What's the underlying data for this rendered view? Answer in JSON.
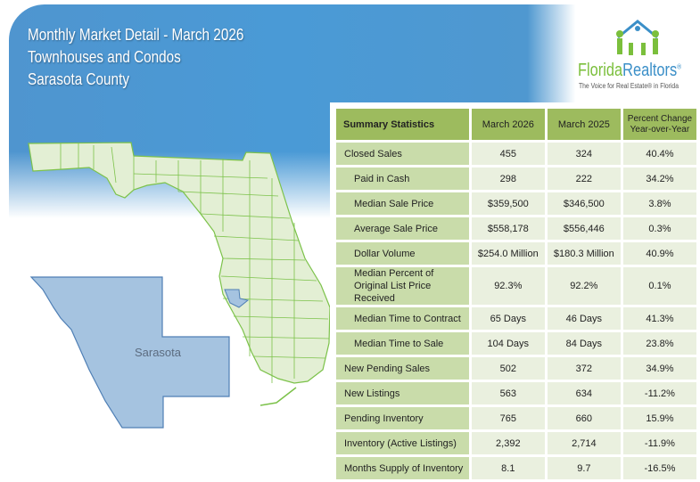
{
  "header": {
    "line1": "Monthly Market Detail - March 2026",
    "line2": "Townhouses and Condos",
    "line3": "Sarasota County"
  },
  "logo": {
    "brand_a": "Florida",
    "brand_b": "Realtors",
    "reg": "®",
    "tagline": "The Voice for Real Estate® in Florida"
  },
  "map": {
    "county_label": "Sarasota",
    "highlight_color": "#a5c3e0",
    "state_color": "#e3efd4",
    "border_color": "#7cc24a"
  },
  "table": {
    "headers": [
      "Summary Statistics",
      "March 2026",
      "March 2025",
      "Percent Change Year-over-Year"
    ],
    "rows": [
      {
        "label": "Closed Sales",
        "a": "455",
        "b": "324",
        "c": "40.4%"
      },
      {
        "label": "Paid in Cash",
        "a": "298",
        "b": "222",
        "c": "34.2%"
      },
      {
        "label": "Median Sale Price",
        "a": "$359,500",
        "b": "$346,500",
        "c": "3.8%"
      },
      {
        "label": "Average Sale Price",
        "a": "$558,178",
        "b": "$556,446",
        "c": "0.3%"
      },
      {
        "label": "Dollar Volume",
        "a": "$254.0 Million",
        "b": "$180.3 Million",
        "c": "40.9%"
      },
      {
        "label": "Median Percent of Original List Price Received",
        "a": "92.3%",
        "b": "92.2%",
        "c": "0.1%"
      },
      {
        "label": "Median Time to Contract",
        "a": "65 Days",
        "b": "46 Days",
        "c": "41.3%"
      },
      {
        "label": "Median Time to Sale",
        "a": "104 Days",
        "b": "84 Days",
        "c": "23.8%"
      },
      {
        "label": "New Pending Sales",
        "a": "502",
        "b": "372",
        "c": "34.9%"
      },
      {
        "label": "New Listings",
        "a": "563",
        "b": "634",
        "c": "-11.2%"
      },
      {
        "label": "Pending Inventory",
        "a": "765",
        "b": "660",
        "c": "15.9%"
      },
      {
        "label": "Inventory (Active Listings)",
        "a": "2,392",
        "b": "2,714",
        "c": "-11.9%"
      },
      {
        "label": "Months Supply of Inventory",
        "a": "8.1",
        "b": "9.7",
        "c": "-16.5%"
      }
    ]
  }
}
